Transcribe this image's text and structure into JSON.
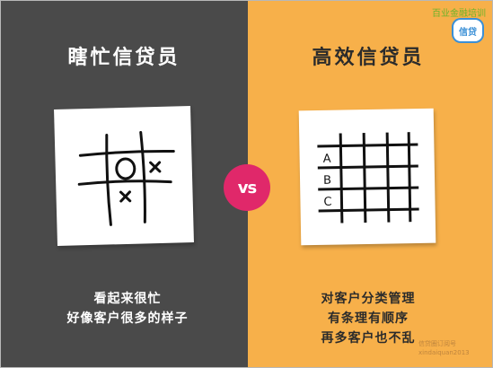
{
  "left_panel": {
    "title": "瞎忙信贷员",
    "caption_lines": [
      "看起来很忙",
      "好像客户很多的样子"
    ]
  },
  "right_panel": {
    "title": "高效信贷员",
    "caption_lines": [
      "对客户分类管理",
      "有条理有顺序",
      "再多客户也不乱"
    ],
    "grid_labels": [
      "A",
      "B",
      "C"
    ]
  },
  "vs_label": "vs",
  "brand": {
    "text": "百业金融培训",
    "logo_text": "信贷"
  },
  "watermark": {
    "line1": "信贷圈订阅号",
    "line2": "xindaiquan2013"
  },
  "colors": {
    "left_background": "#4a4a4a",
    "right_background": "#f7b04a",
    "vs_badge": "#e0286a",
    "brand_green": "#6cb32a",
    "brand_blue": "#3a8fd6"
  }
}
